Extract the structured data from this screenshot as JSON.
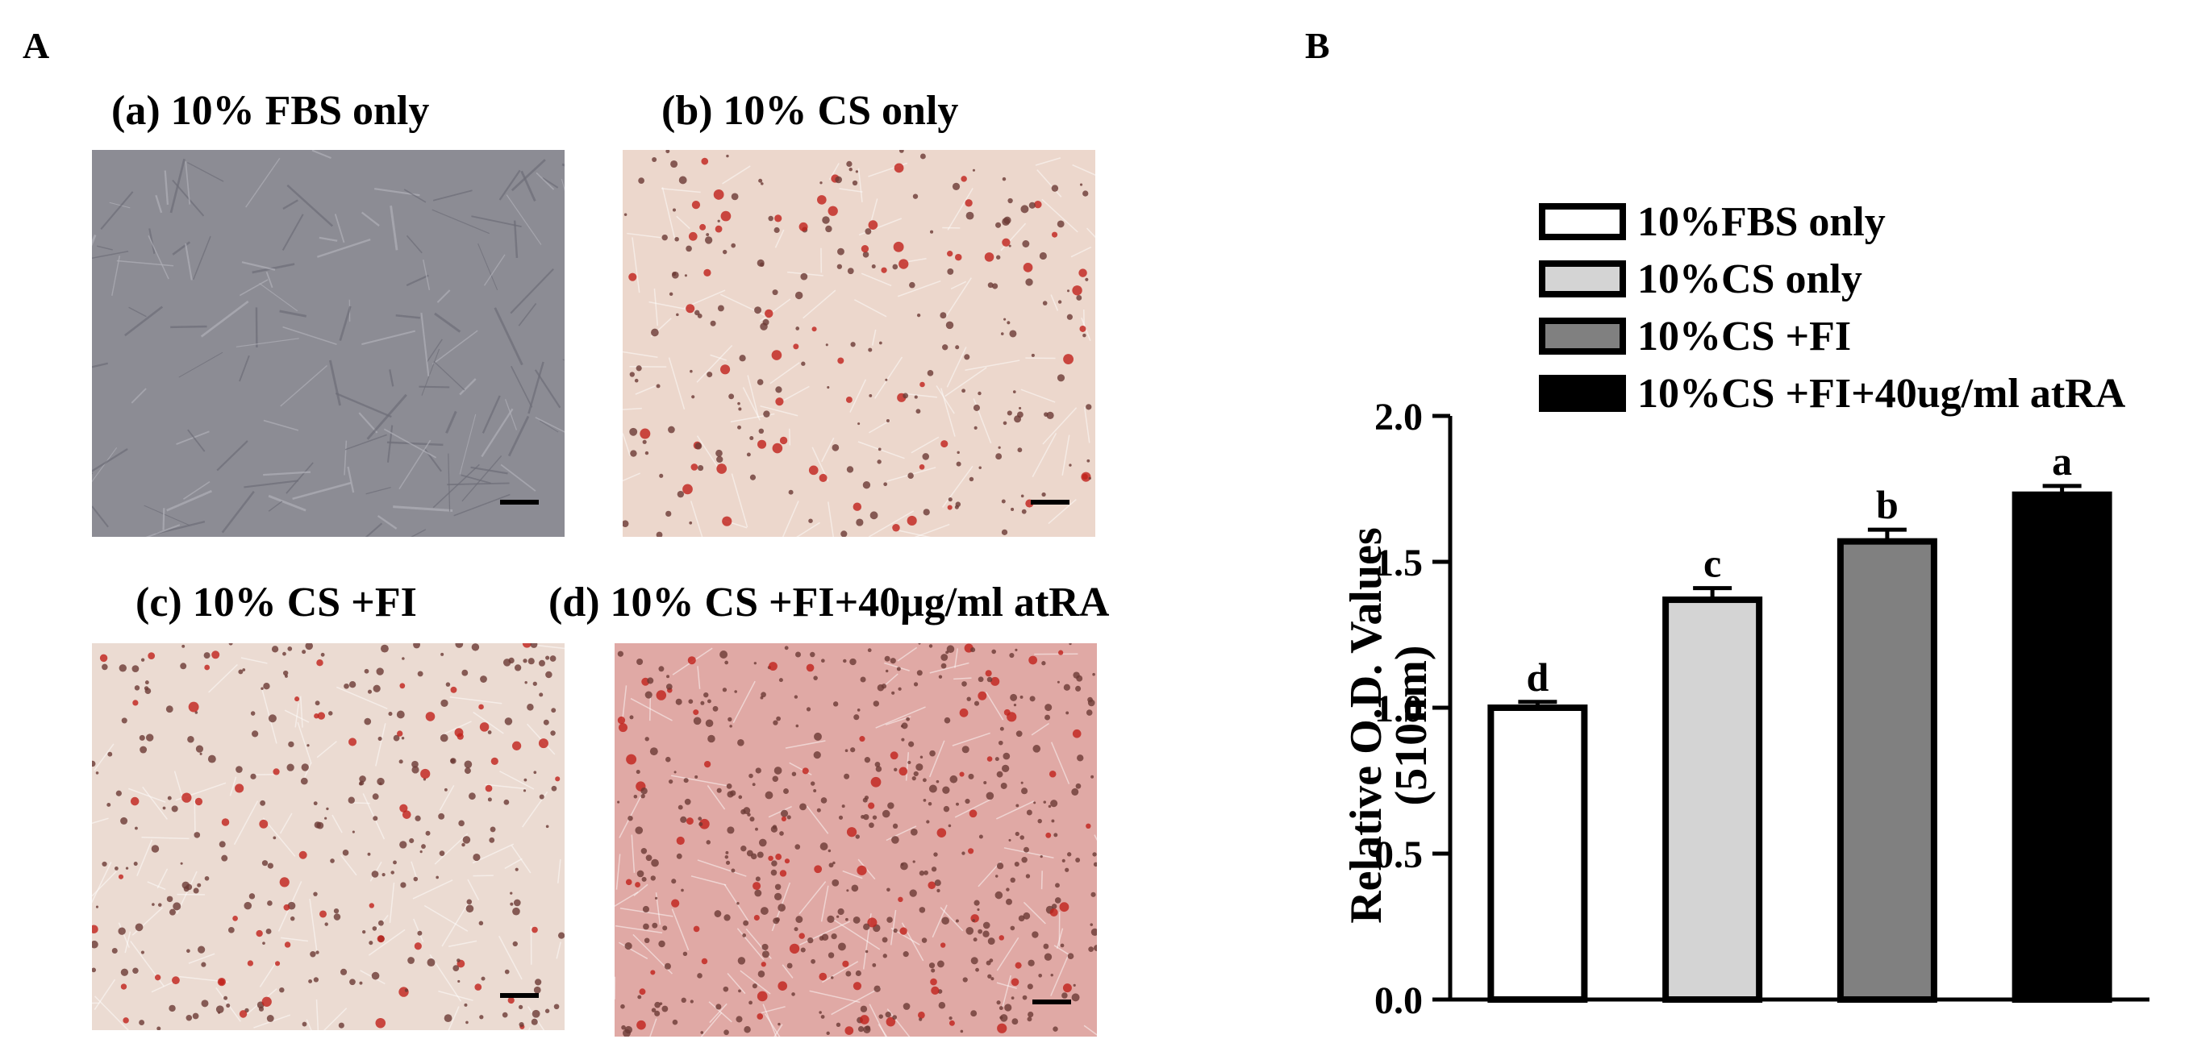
{
  "panel_a": {
    "letter": "A",
    "images": [
      {
        "title": "(a) 10% FBS only",
        "color": "#8c8c94"
      },
      {
        "title": "(b) 10% CS only",
        "color": "#ecd7cc"
      },
      {
        "title": "(c) 10% CS +FI",
        "color": "#ebdbd2"
      },
      {
        "title": "(d) 10% CS +FI+40μg/ml atRA",
        "color": "#e0a9a5"
      }
    ]
  },
  "panel_b": {
    "letter": "B"
  },
  "chart_data": {
    "type": "bar",
    "categories": [
      "10%FBS only",
      "10%CS only",
      "10%CS +FI",
      "10%CS +FI+40ug/ml atRA"
    ],
    "values": [
      1.0,
      1.37,
      1.57,
      1.73
    ],
    "errors": [
      0.02,
      0.04,
      0.04,
      0.03
    ],
    "letters": [
      "d",
      "c",
      "b",
      "a"
    ],
    "colors": [
      "#ffffff",
      "#d4d4d4",
      "#808080",
      "#000000"
    ],
    "legend": [
      "10%FBS only",
      "10%CS only",
      "10%CS +FI",
      "10%CS +FI+40ug/ml atRA"
    ],
    "ylabel_line1": "Relative O.D. Values",
    "ylabel_line2": "(510nm)",
    "ylim": [
      0,
      2.0
    ],
    "yticks": [
      "0.0",
      "0.5",
      "1.0",
      "1.5",
      "2.0"
    ],
    "ytick_values": [
      0,
      0.5,
      1.0,
      1.5,
      2.0
    ],
    "legend_position": "top",
    "grid": false
  }
}
